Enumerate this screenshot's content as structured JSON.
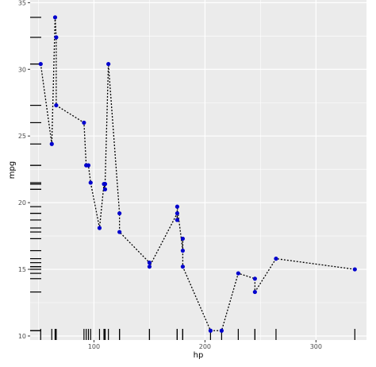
{
  "chart_data": {
    "type": "line",
    "xlabel": "hp",
    "ylabel": "mpg",
    "xlim": [
      42.5,
      345.5
    ],
    "ylim": [
      9.7,
      35.2
    ],
    "x_ticks": [
      100,
      200,
      300
    ],
    "y_ticks": [
      10,
      15,
      20,
      25,
      30,
      35
    ],
    "x_tick_labels": [
      "100",
      "200",
      "300"
    ],
    "y_tick_labels": [
      "10",
      "15",
      "20",
      "25",
      "30",
      "35"
    ],
    "grid": true,
    "panel_background": "#ebebeb",
    "grid_color": "#ffffff",
    "point_color": "#0000cd",
    "line_color": "#000000",
    "line_style": "dotted",
    "rug": true,
    "series": [
      {
        "x": [
          52,
          62,
          65,
          66,
          66,
          91,
          93,
          95,
          97,
          105,
          109,
          110,
          110,
          113,
          123,
          123,
          150,
          150,
          175,
          175,
          175,
          180,
          180,
          180,
          205,
          215,
          230,
          245,
          245,
          264,
          335
        ],
        "y": [
          30.4,
          24.4,
          33.9,
          32.4,
          27.3,
          26.0,
          22.8,
          22.8,
          21.5,
          18.1,
          21.4,
          21.0,
          21.4,
          30.4,
          19.2,
          17.8,
          15.5,
          15.2,
          19.2,
          18.7,
          19.7,
          16.4,
          17.3,
          15.2,
          10.4,
          10.4,
          14.7,
          14.3,
          13.3,
          15.8,
          15.0
        ]
      }
    ],
    "rug_x": [
      52,
      62,
      65,
      66,
      66,
      91,
      93,
      95,
      97,
      105,
      109,
      110,
      110,
      110,
      113,
      123,
      123,
      150,
      150,
      175,
      175,
      175,
      180,
      180,
      180,
      205,
      215,
      230,
      245,
      245,
      264,
      335
    ],
    "rug_y": [
      10.4,
      10.4,
      13.3,
      14.3,
      14.7,
      15.0,
      15.2,
      15.2,
      15.5,
      15.8,
      16.4,
      17.3,
      17.8,
      18.1,
      18.7,
      19.2,
      19.2,
      19.7,
      21.0,
      21.0,
      21.4,
      21.4,
      21.5,
      22.8,
      22.8,
      24.4,
      26.0,
      27.3,
      30.4,
      30.4,
      32.4,
      33.9
    ]
  }
}
